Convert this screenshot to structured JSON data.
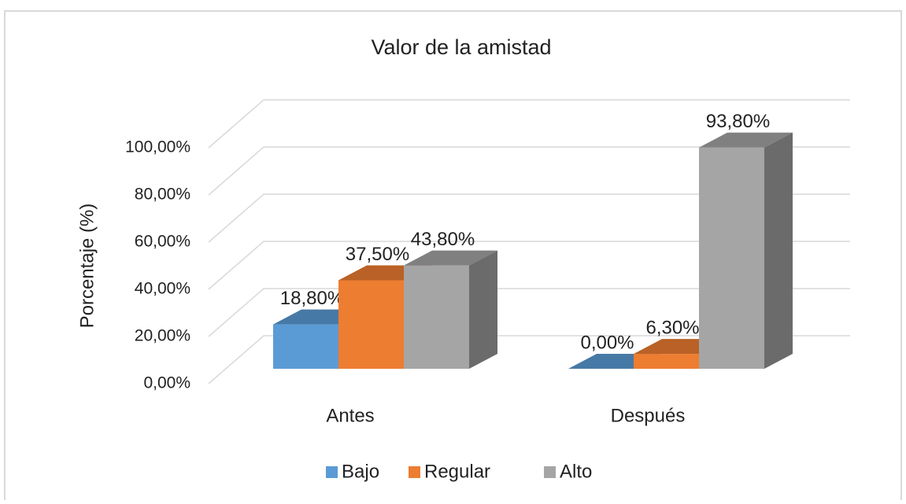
{
  "chart_data": {
    "type": "bar3d",
    "title": "Valor de la amistad",
    "y_label": "Porcentaje (%)",
    "categories": [
      "Antes",
      "Después"
    ],
    "series": [
      {
        "name": "Bajo",
        "color": "#5b9bd5",
        "values": [
          18.8,
          0
        ],
        "value_labels": [
          "18,80%",
          "0,00%"
        ]
      },
      {
        "name": "Regular",
        "color": "#ed7d31",
        "values": [
          37.5,
          6.3
        ],
        "value_labels": [
          "37,50%",
          "6,30%"
        ]
      },
      {
        "name": "Alto",
        "color": "#a5a5a5",
        "values": [
          43.8,
          93.8
        ],
        "value_labels": [
          "43,80%",
          "93,80%"
        ]
      }
    ],
    "ylim": [
      0,
      100
    ],
    "yticks": [
      {
        "value": 0,
        "label": "0,00%"
      },
      {
        "value": 20,
        "label": "20,00%"
      },
      {
        "value": 40,
        "label": "40,00%"
      },
      {
        "value": 60,
        "label": "60,00%"
      },
      {
        "value": 80,
        "label": "80,00%"
      },
      {
        "value": 100,
        "label": "100,00%"
      }
    ],
    "grid": true,
    "legend": "bottom"
  }
}
